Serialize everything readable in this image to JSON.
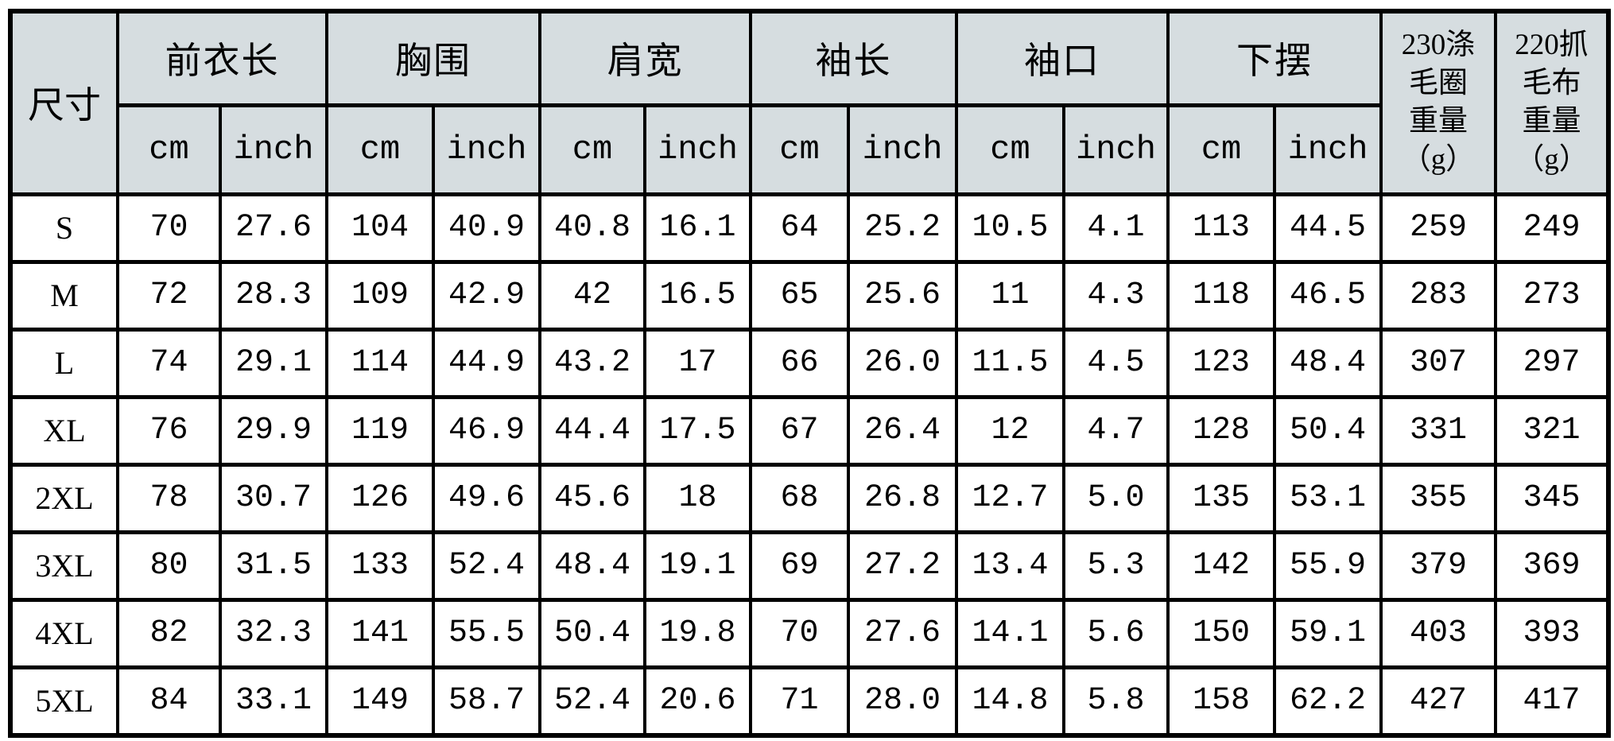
{
  "table": {
    "size_col_header": "尺寸",
    "groups": [
      {
        "label": "前衣长"
      },
      {
        "label": "胸围"
      },
      {
        "label": "肩宽"
      },
      {
        "label": "袖长"
      },
      {
        "label": "袖口"
      },
      {
        "label": "下摆"
      }
    ],
    "units": {
      "cm": "cm",
      "inch": "inch"
    },
    "weights": [
      {
        "label": "230涤\n毛圈\n重量\n（g）"
      },
      {
        "label": "220抓\n毛布\n重量\n（g）"
      }
    ],
    "rows": [
      {
        "size": "S",
        "values": [
          "70",
          "27.6",
          "104",
          "40.9",
          "40.8",
          "16.1",
          "64",
          "25.2",
          "10.5",
          "4.1",
          "113",
          "44.5",
          "259",
          "249"
        ]
      },
      {
        "size": "M",
        "values": [
          "72",
          "28.3",
          "109",
          "42.9",
          "42",
          "16.5",
          "65",
          "25.6",
          "11",
          "4.3",
          "118",
          "46.5",
          "283",
          "273"
        ]
      },
      {
        "size": "L",
        "values": [
          "74",
          "29.1",
          "114",
          "44.9",
          "43.2",
          "17",
          "66",
          "26.0",
          "11.5",
          "4.5",
          "123",
          "48.4",
          "307",
          "297"
        ]
      },
      {
        "size": "XL",
        "values": [
          "76",
          "29.9",
          "119",
          "46.9",
          "44.4",
          "17.5",
          "67",
          "26.4",
          "12",
          "4.7",
          "128",
          "50.4",
          "331",
          "321"
        ]
      },
      {
        "size": "2XL",
        "values": [
          "78",
          "30.7",
          "126",
          "49.6",
          "45.6",
          "18",
          "68",
          "26.8",
          "12.7",
          "5.0",
          "135",
          "53.1",
          "355",
          "345"
        ]
      },
      {
        "size": "3XL",
        "values": [
          "80",
          "31.5",
          "133",
          "52.4",
          "48.4",
          "19.1",
          "69",
          "27.2",
          "13.4",
          "5.3",
          "142",
          "55.9",
          "379",
          "369"
        ]
      },
      {
        "size": "4XL",
        "values": [
          "82",
          "32.3",
          "141",
          "55.5",
          "50.4",
          "19.8",
          "70",
          "27.6",
          "14.1",
          "5.6",
          "150",
          "59.1",
          "403",
          "393"
        ]
      },
      {
        "size": "5XL",
        "values": [
          "84",
          "33.1",
          "149",
          "58.7",
          "52.4",
          "20.6",
          "71",
          "28.0",
          "14.8",
          "5.8",
          "158",
          "62.2",
          "427",
          "417"
        ]
      }
    ],
    "colors": {
      "header_bg": "#d6dde0",
      "border": "#000000",
      "body_bg": "#ffffff"
    }
  }
}
